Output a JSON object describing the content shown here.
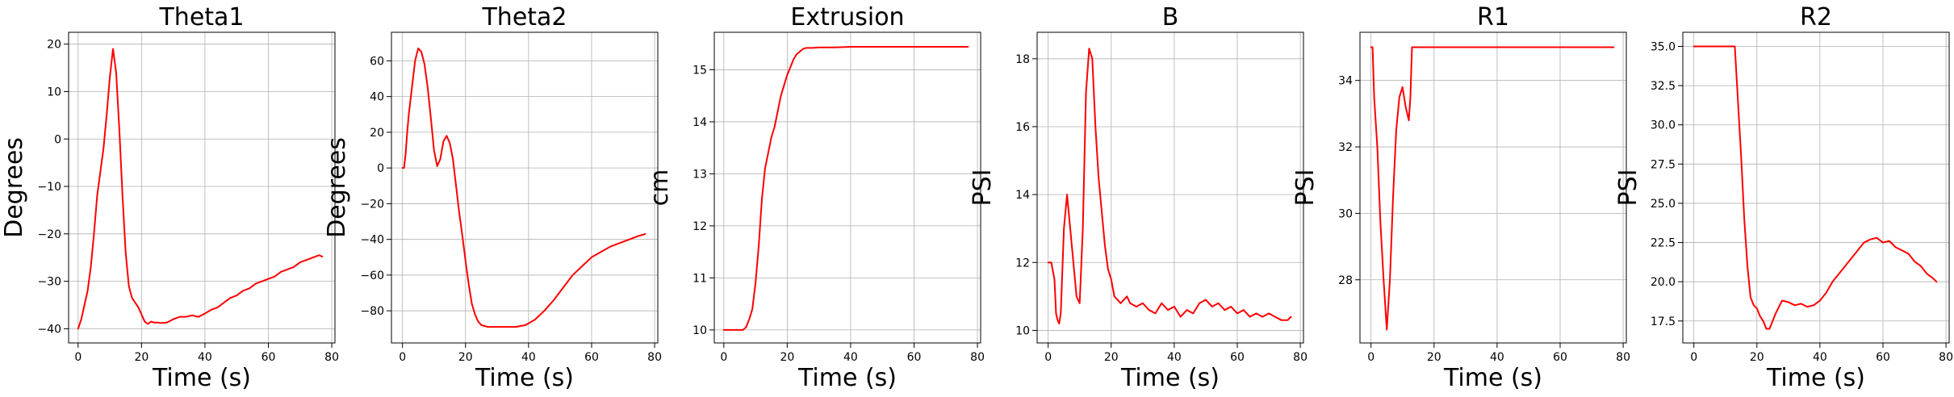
{
  "chart_data": [
    {
      "type": "line",
      "title": "Theta1",
      "xlabel": "Time (s)",
      "ylabel": "Degrees",
      "xlim": [
        -3,
        81
      ],
      "ylim": [
        -43,
        22.5
      ],
      "xticks": [
        0,
        20,
        40,
        60,
        80
      ],
      "yticks": [
        -40,
        -30,
        -20,
        -10,
        0,
        10,
        20
      ],
      "grid": true,
      "series": [
        {
          "color": "#ff0000",
          "x": [
            0,
            1,
            2,
            3,
            4,
            5,
            6,
            7,
            8,
            9,
            10,
            11,
            12,
            13,
            14,
            15,
            16,
            17,
            18,
            19,
            20,
            21,
            22,
            23,
            24,
            25,
            26,
            28,
            30,
            32,
            34,
            36,
            38,
            40,
            42,
            44,
            46,
            48,
            50,
            52,
            54,
            56,
            58,
            60,
            62,
            64,
            66,
            68,
            70,
            72,
            74,
            76,
            77
          ],
          "y": [
            -40,
            -38,
            -35,
            -32,
            -27,
            -20,
            -12,
            -7,
            -2,
            5,
            13,
            19,
            14,
            2,
            -12,
            -24,
            -31,
            -33.5,
            -34.5,
            -35.5,
            -37,
            -38.5,
            -39,
            -38.5,
            -38.7,
            -38.7,
            -38.8,
            -38.7,
            -38,
            -37.5,
            -37.5,
            -37.2,
            -37.5,
            -36.8,
            -36,
            -35.5,
            -34.5,
            -33.5,
            -33,
            -32,
            -31.5,
            -30.5,
            -30,
            -29.5,
            -29,
            -28,
            -27.5,
            -27,
            -26,
            -25.5,
            -25,
            -24.5,
            -24.8
          ]
        }
      ]
    },
    {
      "type": "line",
      "title": "Theta2",
      "xlabel": "Time (s)",
      "ylabel": "Degrees",
      "xlim": [
        -3.5,
        81
      ],
      "ylim": [
        -98,
        76
      ],
      "xticks": [
        0,
        20,
        40,
        60,
        80
      ],
      "yticks": [
        -80,
        -60,
        -40,
        -20,
        0,
        20,
        40,
        60
      ],
      "grid": true,
      "series": [
        {
          "color": "#ff0000",
          "x": [
            0,
            0.5,
            1,
            1.5,
            2,
            3,
            4,
            5,
            6,
            7,
            8,
            9,
            10,
            11,
            12,
            13,
            14,
            15,
            16,
            17,
            18,
            19,
            20,
            21,
            22,
            23,
            24,
            25,
            27,
            30,
            33,
            36,
            39,
            42,
            45,
            48,
            51,
            54,
            57,
            60,
            63,
            66,
            69,
            72,
            75,
            77
          ],
          "y": [
            0,
            0,
            8,
            20,
            30,
            45,
            60,
            67,
            65,
            58,
            45,
            28,
            10,
            1,
            5,
            15,
            18,
            14,
            5,
            -10,
            -25,
            -38,
            -52,
            -65,
            -76,
            -82,
            -86,
            -88,
            -89,
            -89,
            -89,
            -89,
            -88,
            -85,
            -80,
            -74,
            -67,
            -60,
            -55,
            -50,
            -47,
            -44,
            -42,
            -40,
            -38,
            -37
          ]
        }
      ]
    },
    {
      "type": "line",
      "title": "Extrusion",
      "xlabel": "Time (s)",
      "ylabel": "cm",
      "xlim": [
        -3,
        81
      ],
      "ylim": [
        9.75,
        15.72
      ],
      "xticks": [
        0,
        20,
        40,
        60,
        80
      ],
      "yticks": [
        10,
        11,
        12,
        13,
        14,
        15
      ],
      "grid": true,
      "series": [
        {
          "color": "#ff0000",
          "x": [
            0,
            3,
            6,
            7,
            8,
            9,
            10,
            11,
            12,
            13,
            14,
            15,
            16,
            17,
            18,
            19,
            20,
            21,
            22,
            23,
            24,
            25,
            26,
            28,
            30,
            35,
            40,
            45,
            50,
            60,
            70,
            77
          ],
          "y": [
            10,
            10,
            10,
            10.05,
            10.2,
            10.4,
            10.9,
            11.6,
            12.5,
            13.1,
            13.4,
            13.7,
            13.9,
            14.2,
            14.5,
            14.7,
            14.9,
            15.05,
            15.2,
            15.3,
            15.35,
            15.4,
            15.42,
            15.42,
            15.43,
            15.43,
            15.44,
            15.44,
            15.44,
            15.44,
            15.44,
            15.44
          ]
        }
      ]
    },
    {
      "type": "line",
      "title": "B",
      "xlabel": "Time (s)",
      "ylabel": "PSI",
      "xlim": [
        -3.5,
        81
      ],
      "ylim": [
        9.63,
        18.78
      ],
      "xticks": [
        0,
        20,
        40,
        60,
        80
      ],
      "yticks": [
        10,
        12,
        14,
        16,
        18
      ],
      "grid": true,
      "series": [
        {
          "color": "#ff0000",
          "x": [
            0,
            1,
            2,
            2.5,
            3,
            3.5,
            4,
            5,
            6,
            7,
            8,
            9,
            10,
            11,
            12,
            13,
            14,
            15,
            16,
            17,
            18,
            19,
            20,
            21,
            22,
            23,
            24,
            25,
            26,
            28,
            30,
            32,
            34,
            36,
            38,
            40,
            42,
            44,
            46,
            48,
            50,
            52,
            54,
            56,
            58,
            60,
            62,
            64,
            66,
            68,
            70,
            72,
            74,
            76,
            77
          ],
          "y": [
            12,
            12,
            11.5,
            10.5,
            10.3,
            10.2,
            10.5,
            13,
            14,
            13,
            12,
            11,
            10.8,
            13,
            17,
            18.3,
            18,
            16,
            14.5,
            13.5,
            12.5,
            11.8,
            11.5,
            11,
            10.9,
            10.8,
            10.9,
            11,
            10.8,
            10.7,
            10.8,
            10.6,
            10.5,
            10.8,
            10.6,
            10.7,
            10.4,
            10.6,
            10.5,
            10.8,
            10.9,
            10.7,
            10.8,
            10.6,
            10.7,
            10.5,
            10.6,
            10.4,
            10.5,
            10.4,
            10.5,
            10.4,
            10.3,
            10.3,
            10.4
          ]
        }
      ]
    },
    {
      "type": "line",
      "title": "R1",
      "xlabel": "Time (s)",
      "ylabel": "PSI",
      "xlim": [
        -3.5,
        81
      ],
      "ylim": [
        26.1,
        35.45
      ],
      "xticks": [
        0,
        20,
        40,
        60,
        80
      ],
      "yticks": [
        28,
        30,
        32,
        34
      ],
      "grid": true,
      "series": [
        {
          "color": "#ff0000",
          "x": [
            0,
            0.5,
            1,
            2,
            3,
            4,
            5,
            6,
            7,
            8,
            9,
            10,
            11,
            12,
            12.5,
            13,
            14,
            20,
            40,
            60,
            77
          ],
          "y": [
            35,
            35,
            33.5,
            32,
            29.7,
            28,
            26.5,
            28,
            30.5,
            32.5,
            33.5,
            33.8,
            33.2,
            32.8,
            33.5,
            35,
            35,
            35,
            35,
            35,
            35
          ]
        }
      ]
    },
    {
      "type": "line",
      "title": "R2",
      "xlabel": "Time (s)",
      "ylabel": "PSI",
      "xlim": [
        -3.5,
        81
      ],
      "ylim": [
        16.1,
        35.9
      ],
      "xticks": [
        0,
        20,
        40,
        60,
        80
      ],
      "yticks": [
        17.5,
        20.0,
        22.5,
        25.0,
        27.5,
        30.0,
        32.5,
        35.0
      ],
      "grid": true,
      "ytick_format": "1dp",
      "series": [
        {
          "color": "#ff0000",
          "x": [
            0,
            5,
            10,
            13,
            14,
            15,
            16,
            17,
            18,
            19,
            20,
            21,
            22,
            23,
            24,
            25,
            26,
            28,
            30,
            32,
            34,
            36,
            38,
            40,
            42,
            44,
            46,
            48,
            50,
            52,
            54,
            56,
            58,
            60,
            62,
            64,
            66,
            68,
            70,
            72,
            74,
            76,
            77
          ],
          "y": [
            35,
            35,
            35,
            35,
            31.5,
            28,
            24,
            21,
            19,
            18.5,
            18.3,
            17.8,
            17.5,
            17,
            17,
            17.5,
            18,
            18.8,
            18.7,
            18.5,
            18.6,
            18.4,
            18.5,
            18.8,
            19.3,
            20,
            20.5,
            21,
            21.5,
            22,
            22.5,
            22.7,
            22.8,
            22.5,
            22.6,
            22.2,
            22,
            21.8,
            21.3,
            21,
            20.5,
            20.2,
            20
          ]
        }
      ]
    }
  ]
}
